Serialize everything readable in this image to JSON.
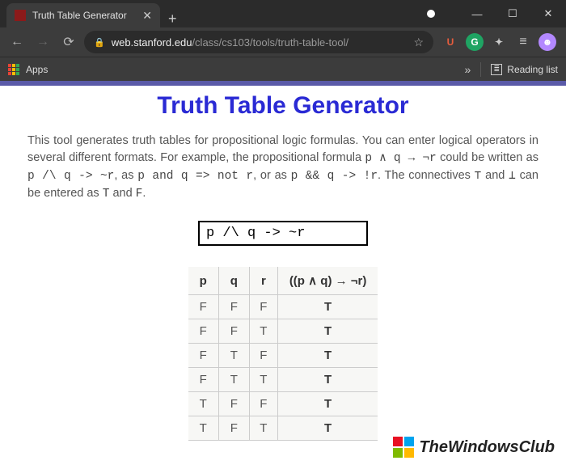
{
  "browser": {
    "tab_title": "Truth Table Generator",
    "new_tab_glyph": "+",
    "url_domain": "web.stanford.edu",
    "url_path": "/class/cs103/tools/truth-table-tool/",
    "apps_label": "Apps",
    "overflow_glyph": "»",
    "reading_list_label": "Reading list",
    "ext_u": "U",
    "ext_g": "G",
    "extensions": {
      "u_color": "#e85d3d",
      "g_bg": "#1fa463",
      "avatar_bg": "#b388ff"
    },
    "win": {
      "min": "—",
      "max": "☐",
      "close": "✕"
    },
    "nav": {
      "back": "←",
      "fwd": "→",
      "reload": "⟳"
    },
    "lock_glyph": "🔒",
    "star_glyph": "☆",
    "puzzle_glyph": "✦",
    "menu_glyph": "≡",
    "avatar_glyph": "☻",
    "tab_close_glyph": "✕",
    "reading_icon_glyph": "≣"
  },
  "page": {
    "title": "Truth Table Generator",
    "desc_parts": {
      "t1": "This tool generates truth tables for propositional logic formulas. You can enter logical operators in several different formats. For example, the propositional formula ",
      "f1": "p ∧ q → ¬r",
      "t2": " could be written as ",
      "f2": "p /\\ q -> ~r",
      "t3": ", as ",
      "f3": "p and q => not r",
      "t4": ", or as ",
      "f4": "p && q -> !r",
      "t5": ". The connectives ",
      "f5": "⊤",
      "t6": " and ",
      "f6": "⊥",
      "t7": " can be entered as ",
      "f7": "T",
      "t8": " and ",
      "f8": "F",
      "t9": "."
    },
    "formula_input": "p /\\ q -> ~r",
    "table": {
      "headers": [
        "p",
        "q",
        "r",
        "((p ∧ q) → ¬r)"
      ],
      "rows": [
        [
          "F",
          "F",
          "F",
          "T"
        ],
        [
          "F",
          "F",
          "T",
          "T"
        ],
        [
          "F",
          "T",
          "F",
          "T"
        ],
        [
          "F",
          "T",
          "T",
          "T"
        ],
        [
          "T",
          "F",
          "F",
          "T"
        ],
        [
          "T",
          "F",
          "T",
          "T"
        ]
      ]
    }
  },
  "watermark": {
    "text": "TheWindowsClub",
    "colors": [
      "#e81123",
      "#00a4ef",
      "#7fba00",
      "#ffb900"
    ]
  }
}
